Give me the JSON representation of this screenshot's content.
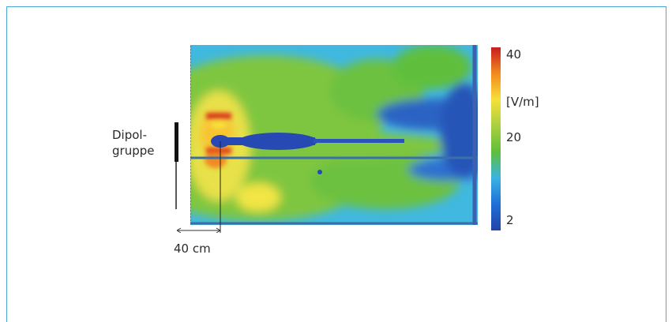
{
  "dipole_label_line1": "Dipol-",
  "dipole_label_line2": "gruppe",
  "scale_bar_label": "40 cm",
  "colorbar": {
    "max_label": "40",
    "unit_label": "[V/m]",
    "mid_label": "20",
    "min_label": "2",
    "colors": [
      "#c81e1e",
      "#f28a1e",
      "#f6e03a",
      "#a9cf3e",
      "#5fbf3c",
      "#3ab3e2",
      "#1f6fd6",
      "#2243a8"
    ]
  },
  "frame_color": "#4aa6d6"
}
